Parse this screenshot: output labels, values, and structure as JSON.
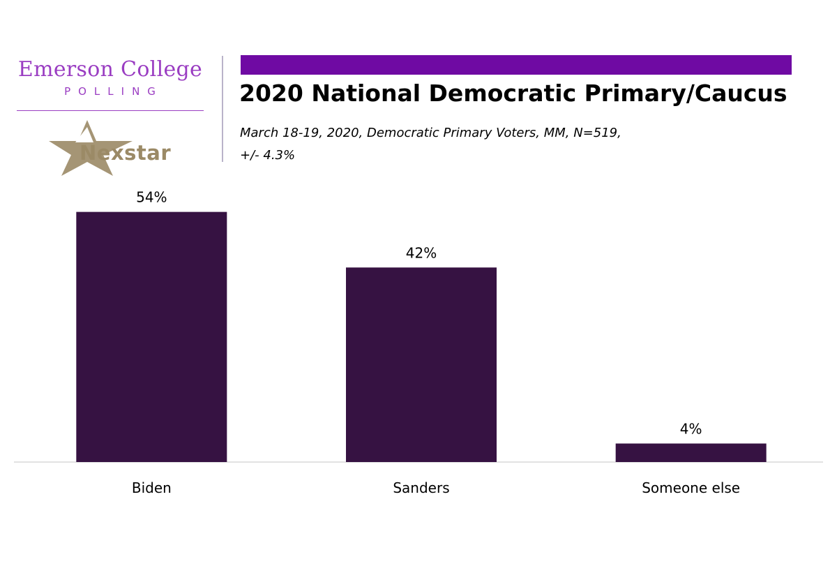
{
  "logo": {
    "emerson_name": "Emerson College",
    "emerson_sub": "POLLING",
    "nexstar_name": "Nexstar"
  },
  "colors": {
    "accent": "#6f0aa3",
    "bar": "#361242",
    "emerson": "#9a3dc2",
    "nexstar": "#9b8a66"
  },
  "chart_data": {
    "type": "bar",
    "title": "2020 National Democratic Primary/Caucus",
    "subtitle_line1": "March 18-19, 2020, Democratic Primary Voters, MM,  N=519,",
    "subtitle_line2": "+/-  4.3%",
    "categories": [
      "Biden",
      "Sanders",
      "Someone else"
    ],
    "values": [
      54,
      42,
      4
    ],
    "value_labels": [
      "54%",
      "42%",
      "4%"
    ],
    "xlabel": "",
    "ylabel": "",
    "ylim": [
      0,
      60
    ],
    "grid": false,
    "legend": "none"
  }
}
